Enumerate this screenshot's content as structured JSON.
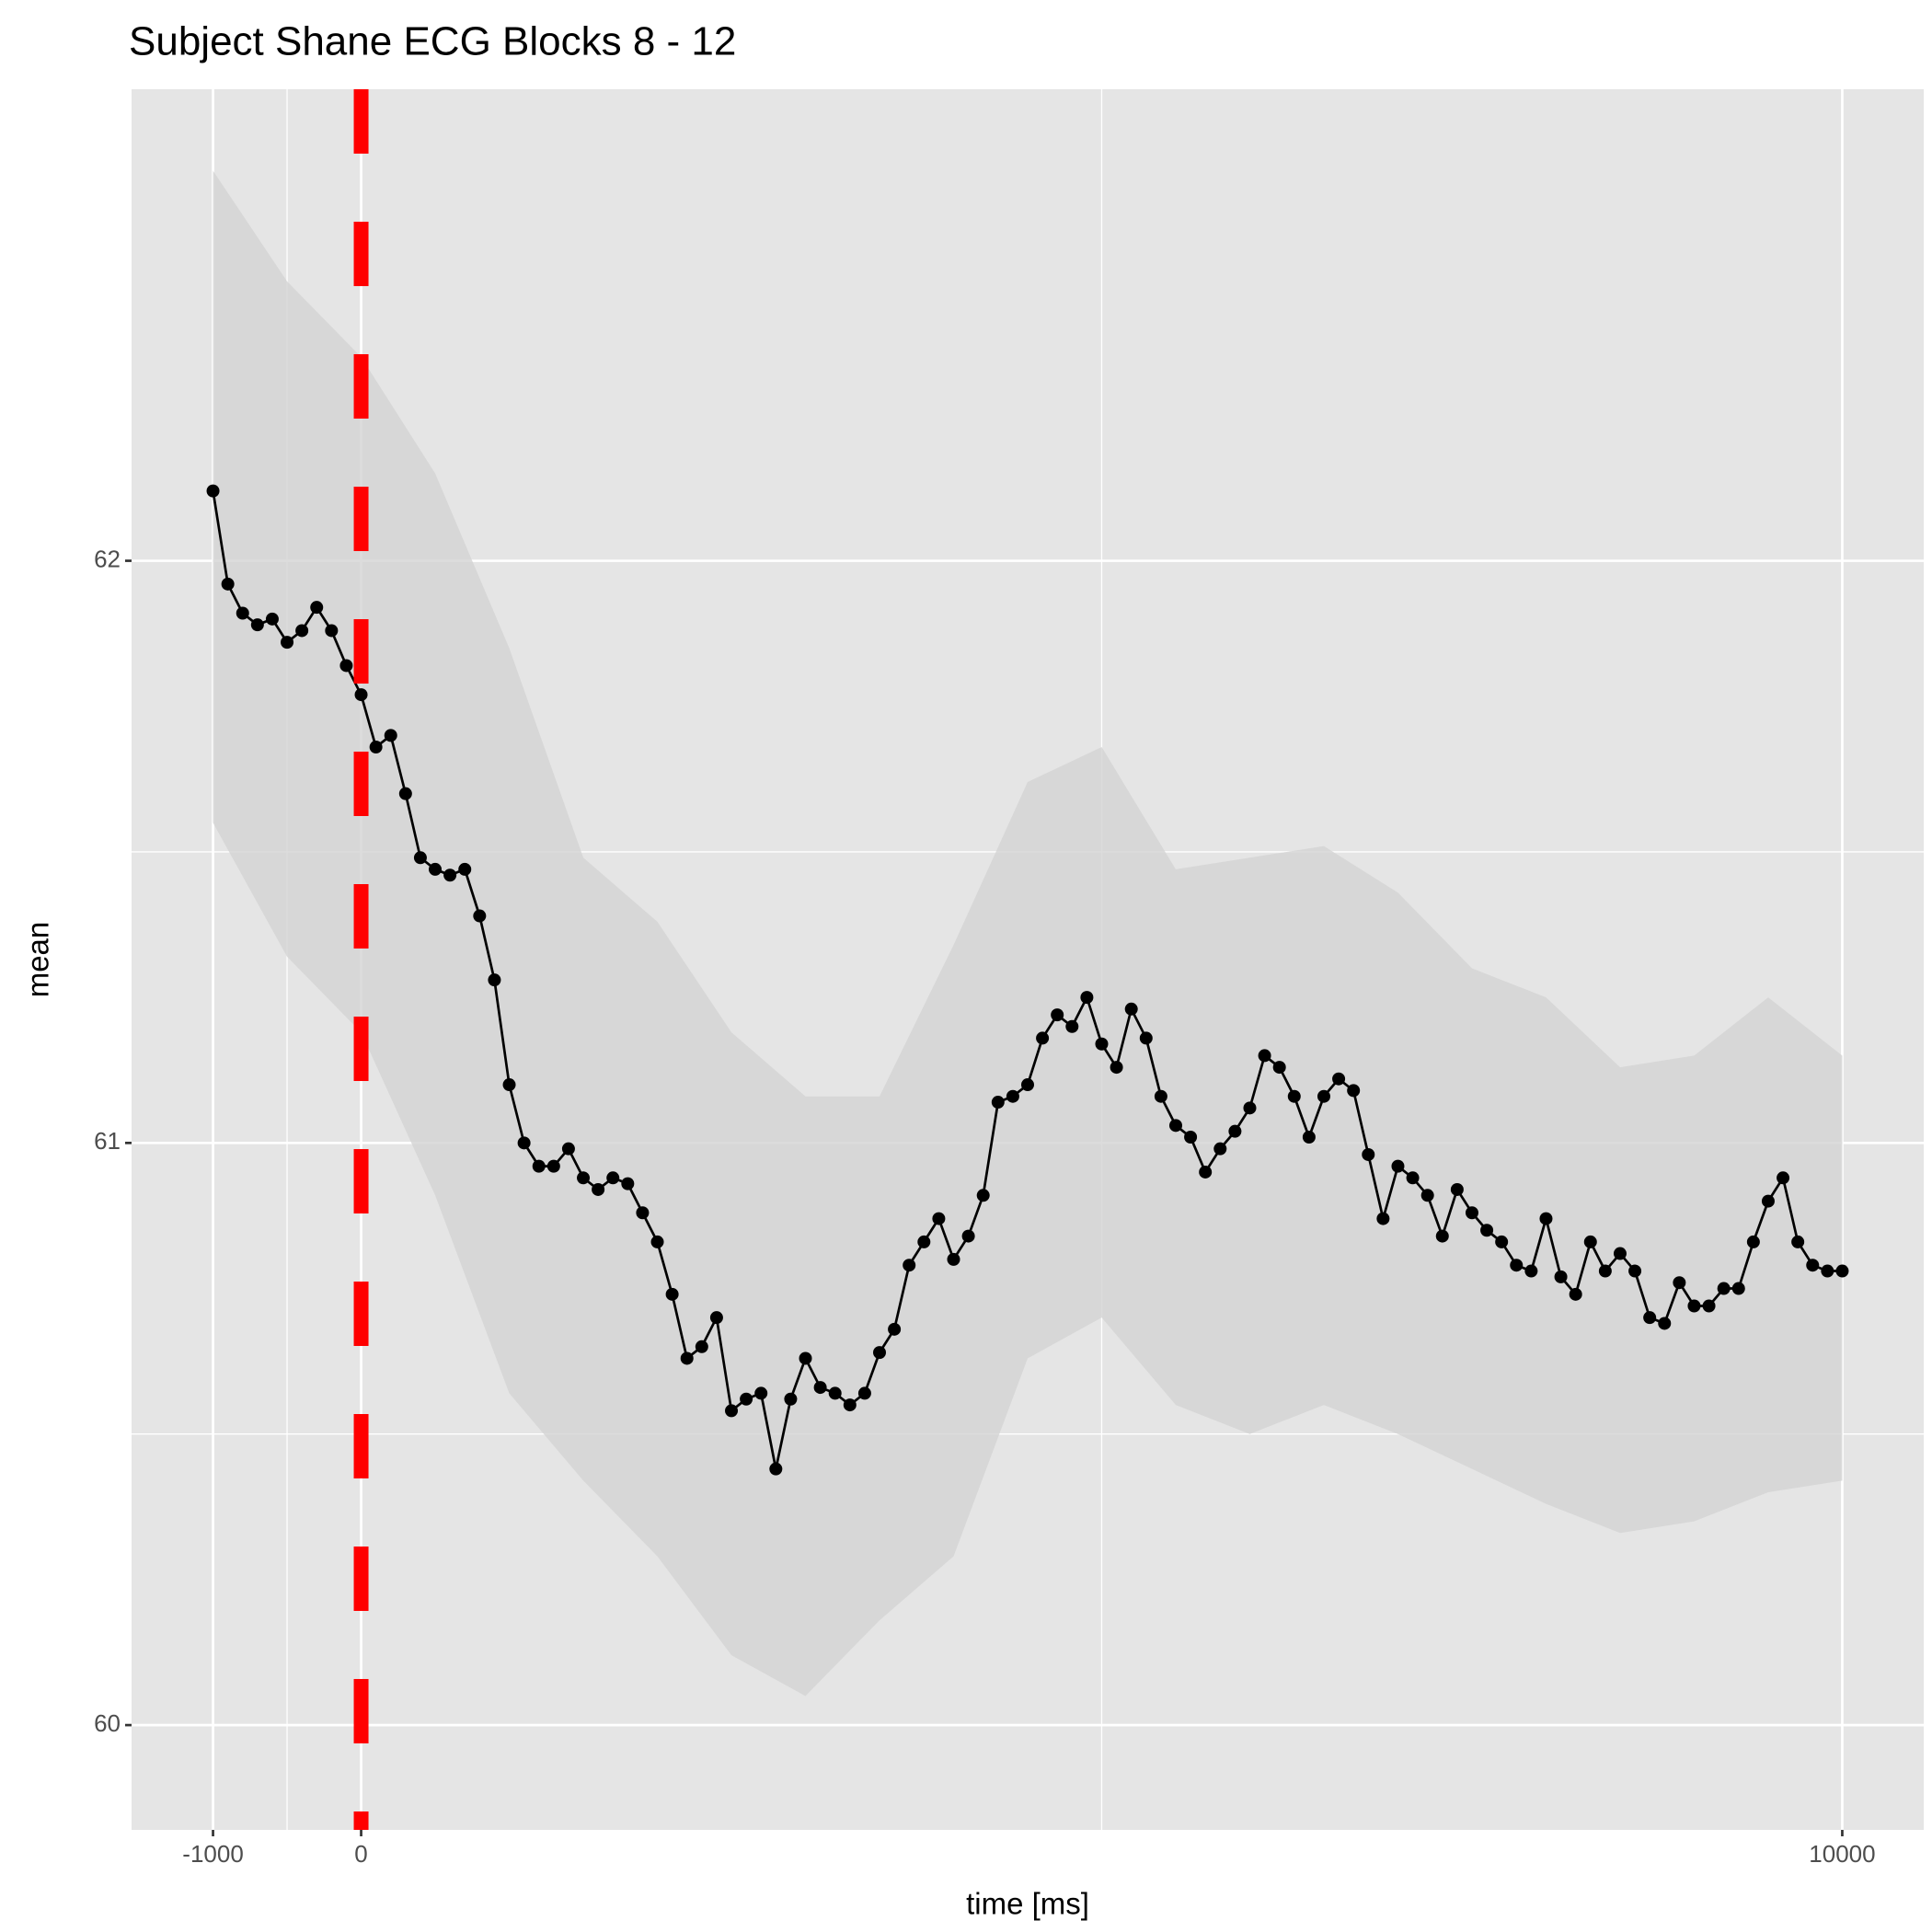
{
  "chart_data": {
    "type": "line",
    "title": "Subject Shane ECG Blocks 8 - 12",
    "x_label": "time [ms]",
    "y_label": "mean",
    "x": [
      -1000,
      -900,
      -800,
      -700,
      -600,
      -500,
      -400,
      -300,
      -200,
      -100,
      0,
      100,
      200,
      300,
      400,
      500,
      600,
      700,
      800,
      900,
      1000,
      1100,
      1200,
      1300,
      1400,
      1500,
      1600,
      1700,
      1800,
      1900,
      2000,
      2100,
      2200,
      2300,
      2400,
      2500,
      2600,
      2700,
      2800,
      2900,
      3000,
      3100,
      3200,
      3300,
      3400,
      3500,
      3600,
      3700,
      3800,
      3900,
      4000,
      4100,
      4200,
      4300,
      4400,
      4500,
      4600,
      4700,
      4800,
      4900,
      5000,
      5100,
      5200,
      5300,
      5400,
      5500,
      5600,
      5700,
      5800,
      5900,
      6000,
      6100,
      6200,
      6300,
      6400,
      6500,
      6600,
      6700,
      6800,
      6900,
      7000,
      7100,
      7200,
      7300,
      7400,
      7500,
      7600,
      7700,
      7800,
      7900,
      8000,
      8100,
      8200,
      8300,
      8400,
      8500,
      8600,
      8700,
      8800,
      8900,
      9000,
      9100,
      9200,
      9300,
      9400,
      9500,
      9600,
      9700,
      9800,
      9900,
      10000
    ],
    "series": [
      {
        "color": "#000000",
        "values": [
          62.12,
          61.96,
          61.91,
          61.89,
          61.9,
          61.86,
          61.88,
          61.92,
          61.88,
          61.82,
          61.77,
          61.68,
          61.7,
          61.6,
          61.49,
          61.47,
          61.46,
          61.47,
          61.39,
          61.28,
          61.1,
          61.0,
          60.96,
          60.96,
          60.99,
          60.94,
          60.92,
          60.94,
          60.93,
          60.88,
          60.83,
          60.74,
          60.63,
          60.65,
          60.7,
          60.54,
          60.56,
          60.57,
          60.44,
          60.56,
          60.63,
          60.58,
          60.57,
          60.55,
          60.57,
          60.64,
          60.68,
          60.79,
          60.83,
          60.87,
          60.8,
          60.84,
          60.91,
          61.07,
          61.08,
          61.1,
          61.18,
          61.22,
          61.2,
          61.25,
          61.17,
          61.13,
          61.23,
          61.18,
          61.08,
          61.03,
          61.01,
          60.95,
          60.99,
          61.02,
          61.06,
          61.15,
          61.13,
          61.08,
          61.01,
          61.08,
          61.11,
          61.09,
          60.98,
          60.87,
          60.96,
          60.94,
          60.91,
          60.84,
          60.92,
          60.88,
          60.85,
          60.83,
          60.79,
          60.78,
          60.87,
          60.77,
          60.74,
          60.83,
          60.78,
          60.81,
          60.78,
          60.7,
          60.69,
          60.76,
          60.72,
          60.72,
          60.75,
          60.75,
          60.83,
          60.9,
          60.94,
          60.83,
          60.79,
          60.78,
          60.78
        ]
      }
    ],
    "ribbon": {
      "color": "#d3d3d3",
      "x": [
        -1000,
        -500,
        0,
        500,
        1000,
        1500,
        2000,
        2500,
        3000,
        3500,
        4000,
        4500,
        5000,
        5500,
        6000,
        6500,
        7000,
        7500,
        8000,
        8500,
        9000,
        9500,
        10000
      ],
      "upper": [
        62.67,
        62.48,
        62.35,
        62.15,
        61.85,
        61.49,
        61.38,
        61.19,
        61.08,
        61.08,
        61.34,
        61.62,
        61.68,
        61.47,
        61.49,
        61.51,
        61.43,
        61.3,
        61.25,
        61.13,
        61.15,
        61.25,
        61.15
      ],
      "lower": [
        61.55,
        61.32,
        61.19,
        60.91,
        60.57,
        60.42,
        60.29,
        60.12,
        60.05,
        60.18,
        60.29,
        60.63,
        60.7,
        60.55,
        60.5,
        60.55,
        60.5,
        60.44,
        60.38,
        60.33,
        60.35,
        60.4,
        60.42
      ]
    },
    "vline": {
      "x": 0,
      "color": "#ff0000"
    },
    "xlim": [
      -1550,
      10550
    ],
    "ylim": [
      59.82,
      62.81
    ],
    "xticks": [
      -1000,
      0,
      10000
    ],
    "yticks": [
      60,
      61,
      62
    ],
    "x_minor_grid": [
      -500,
      5000
    ],
    "y_minor_grid": [
      60.5,
      61.5
    ],
    "grid": true,
    "panel_color": "#e5e5e5"
  }
}
